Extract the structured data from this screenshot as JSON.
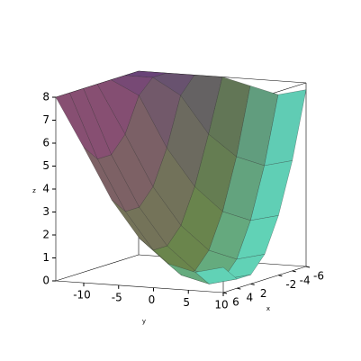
{
  "chart_data": {
    "type": "surface",
    "x": [
      -6,
      -4,
      -2,
      0,
      2,
      4,
      6
    ],
    "y": [
      -14,
      -10,
      -6,
      -2,
      2,
      6,
      10
    ],
    "z": [
      [
        8,
        8,
        8,
        8,
        7.7,
        7.4,
        7.7
      ],
      [
        8,
        8,
        7.3,
        5.7,
        4.8,
        4.5,
        4.8
      ],
      [
        8,
        7.4,
        5.2,
        3.6,
        2.6,
        2.3,
        2.6
      ],
      [
        8,
        5.9,
        3.7,
        2.1,
        1.1,
        0.8,
        1.1
      ],
      [
        8,
        5.2,
        3,
        1.4,
        0.4,
        0.1,
        0.4
      ],
      [
        8,
        5.2,
        3,
        1.4,
        0.4,
        0.1,
        0.4
      ],
      [
        8,
        5.9,
        3.7,
        2.1,
        1.1,
        0.8,
        1.1
      ]
    ],
    "xlim": [
      -6,
      6
    ],
    "ylim": [
      -14,
      10
    ],
    "zlim": [
      0,
      8
    ],
    "xticks": [
      6,
      4,
      2,
      -2,
      -4,
      -6
    ],
    "yticks": [
      -10,
      -5,
      0,
      5,
      10
    ],
    "zticks": [
      0,
      1,
      2,
      3,
      4,
      5,
      6,
      7,
      8
    ],
    "xlabel": "x",
    "ylabel": "y",
    "zlabel": "z",
    "box": true
  }
}
